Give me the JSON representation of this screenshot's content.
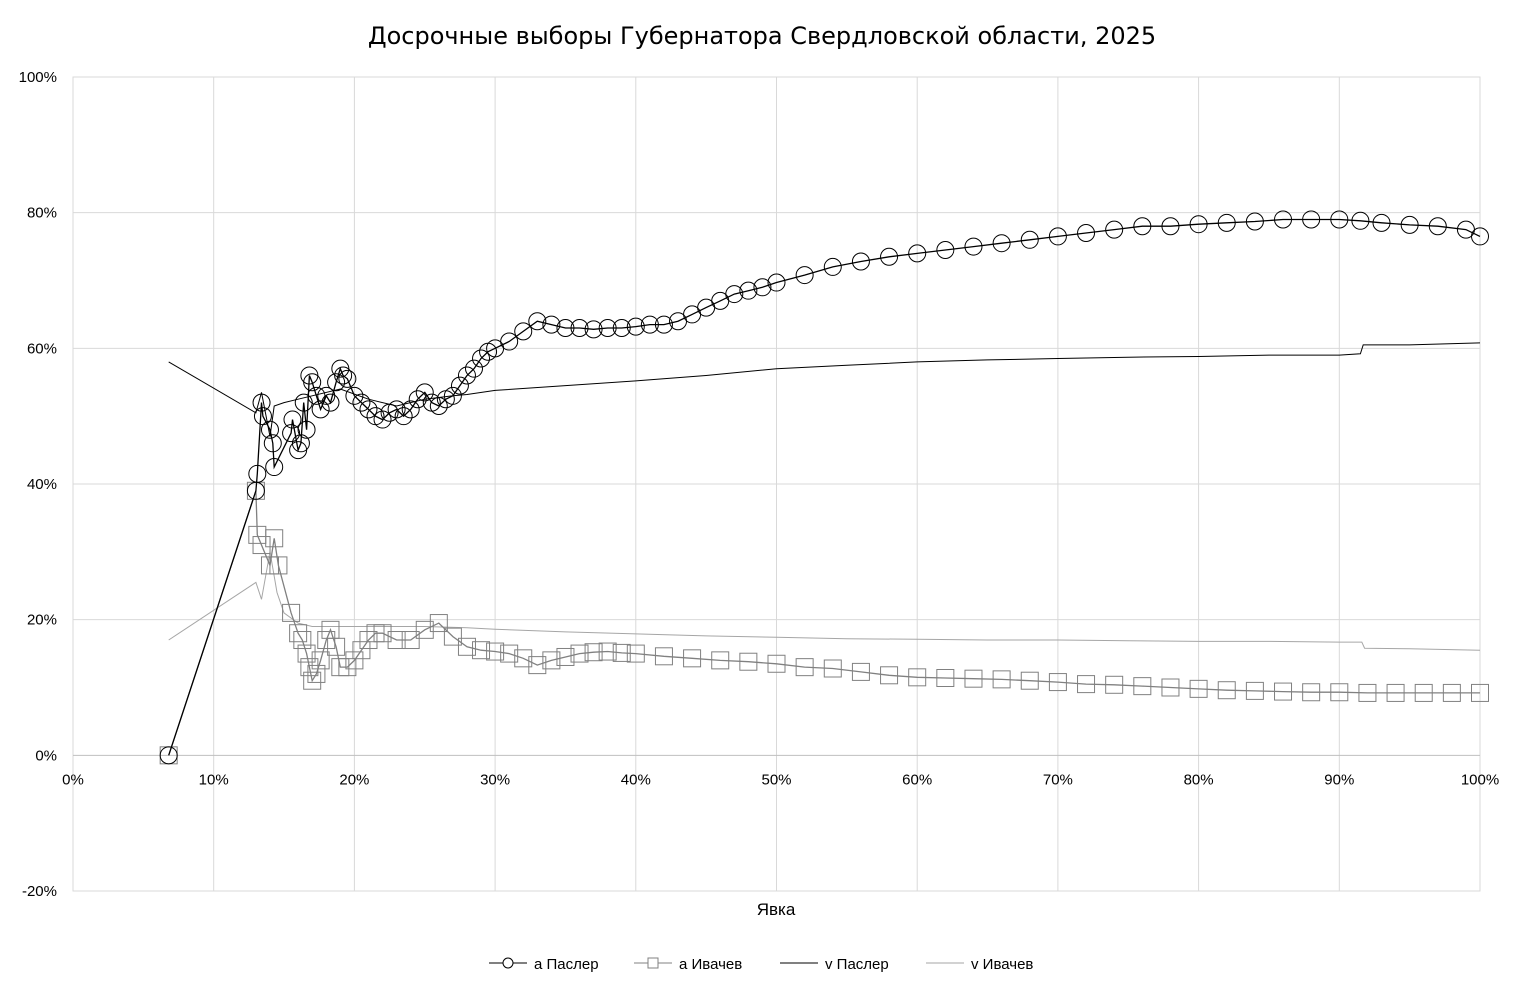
{
  "chart_data": {
    "type": "line",
    "title": "Досрочные выборы Губернатора Свердловской области, 2025",
    "xlabel": "Явка",
    "ylabel": "",
    "xlim": [
      0,
      100
    ],
    "ylim": [
      -20,
      100
    ],
    "x_ticks": [
      "0%",
      "10%",
      "20%",
      "30%",
      "40%",
      "50%",
      "60%",
      "70%",
      "80%",
      "90%",
      "100%"
    ],
    "y_ticks": [
      "-20%",
      "0%",
      "20%",
      "40%",
      "60%",
      "80%",
      "100%"
    ],
    "grid": true,
    "legend_position": "bottom",
    "series": [
      {
        "name": "a Паслер",
        "marker": "circle",
        "color": "#000000",
        "points": [
          [
            6.8,
            0
          ],
          [
            13.0,
            39
          ],
          [
            13.1,
            41.5
          ],
          [
            13.4,
            52
          ],
          [
            13.5,
            50
          ],
          [
            14.0,
            48
          ],
          [
            14.2,
            46
          ],
          [
            14.3,
            42.5
          ],
          [
            15.5,
            47.5
          ],
          [
            15.6,
            49.5
          ],
          [
            16.0,
            45
          ],
          [
            16.2,
            46
          ],
          [
            16.4,
            52
          ],
          [
            16.6,
            48
          ],
          [
            16.8,
            56
          ],
          [
            17.0,
            55
          ],
          [
            17.3,
            53
          ],
          [
            17.6,
            51
          ],
          [
            18.0,
            53
          ],
          [
            18.3,
            52
          ],
          [
            18.7,
            55
          ],
          [
            19.0,
            57
          ],
          [
            19.2,
            56
          ],
          [
            19.5,
            55.5
          ],
          [
            20.0,
            53
          ],
          [
            20.5,
            52
          ],
          [
            21.0,
            51
          ],
          [
            21.5,
            50
          ],
          [
            22.0,
            49.5
          ],
          [
            22.5,
            50.5
          ],
          [
            23.0,
            51
          ],
          [
            23.5,
            50
          ],
          [
            24.0,
            51
          ],
          [
            24.5,
            52.5
          ],
          [
            25.0,
            53.5
          ],
          [
            25.5,
            52
          ],
          [
            26.0,
            51.5
          ],
          [
            26.5,
            52.5
          ],
          [
            27.0,
            53
          ],
          [
            27.5,
            54.5
          ],
          [
            28.0,
            56
          ],
          [
            28.5,
            57
          ],
          [
            29.0,
            58.5
          ],
          [
            29.5,
            59.5
          ],
          [
            30.0,
            60
          ],
          [
            31.0,
            61
          ],
          [
            32.0,
            62.5
          ],
          [
            33.0,
            64
          ],
          [
            34.0,
            63.5
          ],
          [
            35.0,
            63
          ],
          [
            36.0,
            63
          ],
          [
            37.0,
            62.8
          ],
          [
            38.0,
            63
          ],
          [
            39.0,
            63
          ],
          [
            40.0,
            63.2
          ],
          [
            41.0,
            63.5
          ],
          [
            42.0,
            63.5
          ],
          [
            43.0,
            64
          ],
          [
            44.0,
            65
          ],
          [
            45.0,
            66
          ],
          [
            46.0,
            67
          ],
          [
            47.0,
            68
          ],
          [
            48.0,
            68.5
          ],
          [
            49.0,
            69
          ],
          [
            50.0,
            69.7
          ],
          [
            52.0,
            70.8
          ],
          [
            54.0,
            72
          ],
          [
            56.0,
            72.8
          ],
          [
            58.0,
            73.5
          ],
          [
            60.0,
            74
          ],
          [
            62.0,
            74.5
          ],
          [
            64.0,
            75
          ],
          [
            66.0,
            75.5
          ],
          [
            68.0,
            76
          ],
          [
            70.0,
            76.5
          ],
          [
            72.0,
            77
          ],
          [
            74.0,
            77.5
          ],
          [
            76.0,
            78
          ],
          [
            78.0,
            78
          ],
          [
            80.0,
            78.3
          ],
          [
            82.0,
            78.5
          ],
          [
            84.0,
            78.7
          ],
          [
            86.0,
            79
          ],
          [
            88.0,
            79
          ],
          [
            90.0,
            79
          ],
          [
            91.5,
            78.8
          ],
          [
            93.0,
            78.5
          ],
          [
            95.0,
            78.2
          ],
          [
            97.0,
            78
          ],
          [
            99.0,
            77.5
          ],
          [
            100.0,
            76.5
          ]
        ]
      },
      {
        "name": "a Ивачев",
        "marker": "square",
        "color": "#808080",
        "points": [
          [
            6.8,
            0
          ],
          [
            13.0,
            39
          ],
          [
            13.1,
            32.5
          ],
          [
            13.4,
            31
          ],
          [
            14.0,
            28
          ],
          [
            14.3,
            32
          ],
          [
            14.6,
            28
          ],
          [
            15.5,
            21
          ],
          [
            16.0,
            18
          ],
          [
            16.3,
            17
          ],
          [
            16.6,
            15
          ],
          [
            16.8,
            13
          ],
          [
            17.0,
            11
          ],
          [
            17.3,
            12
          ],
          [
            17.6,
            14
          ],
          [
            18.0,
            17
          ],
          [
            18.3,
            18.5
          ],
          [
            18.7,
            16
          ],
          [
            19.0,
            13
          ],
          [
            19.5,
            13
          ],
          [
            20.0,
            14
          ],
          [
            20.5,
            15.5
          ],
          [
            21.0,
            17
          ],
          [
            21.5,
            18
          ],
          [
            22.0,
            18
          ],
          [
            23.0,
            17
          ],
          [
            24.0,
            17
          ],
          [
            25.0,
            18.5
          ],
          [
            26.0,
            19.5
          ],
          [
            27.0,
            17.5
          ],
          [
            28.0,
            16
          ],
          [
            29.0,
            15.5
          ],
          [
            30.0,
            15.3
          ],
          [
            31.0,
            15
          ],
          [
            32.0,
            14.3
          ],
          [
            33.0,
            13.3
          ],
          [
            34.0,
            14
          ],
          [
            35.0,
            14.5
          ],
          [
            36.0,
            15
          ],
          [
            37.0,
            15.2
          ],
          [
            38.0,
            15.3
          ],
          [
            39.0,
            15.1
          ],
          [
            40.0,
            15
          ],
          [
            42.0,
            14.6
          ],
          [
            44.0,
            14.3
          ],
          [
            46.0,
            14
          ],
          [
            48.0,
            13.8
          ],
          [
            50.0,
            13.5
          ],
          [
            52.0,
            13
          ],
          [
            54.0,
            12.8
          ],
          [
            56.0,
            12.3
          ],
          [
            58.0,
            11.8
          ],
          [
            60.0,
            11.5
          ],
          [
            62.0,
            11.4
          ],
          [
            64.0,
            11.3
          ],
          [
            66.0,
            11.2
          ],
          [
            68.0,
            11
          ],
          [
            70.0,
            10.8
          ],
          [
            72.0,
            10.5
          ],
          [
            74.0,
            10.4
          ],
          [
            76.0,
            10.2
          ],
          [
            78.0,
            10
          ],
          [
            80.0,
            9.8
          ],
          [
            82.0,
            9.6
          ],
          [
            84.0,
            9.5
          ],
          [
            86.0,
            9.4
          ],
          [
            88.0,
            9.3
          ],
          [
            90.0,
            9.3
          ],
          [
            92.0,
            9.2
          ],
          [
            94.0,
            9.2
          ],
          [
            96.0,
            9.2
          ],
          [
            98.0,
            9.2
          ],
          [
            100.0,
            9.2
          ]
        ]
      },
      {
        "name": "v Паслер",
        "marker": "none",
        "color": "#000000",
        "points": [
          [
            6.8,
            58
          ],
          [
            13.0,
            50.5
          ],
          [
            13.4,
            53.5
          ],
          [
            14.0,
            47
          ],
          [
            14.3,
            51.5
          ],
          [
            15.0,
            52
          ],
          [
            16.0,
            52.5
          ],
          [
            17.0,
            53
          ],
          [
            19.0,
            54
          ],
          [
            21.0,
            52.5
          ],
          [
            23.0,
            51.5
          ],
          [
            25.0,
            52.5
          ],
          [
            27.0,
            53
          ],
          [
            28.0,
            53.2
          ],
          [
            30.0,
            53.8
          ],
          [
            35.0,
            54.5
          ],
          [
            40.0,
            55.2
          ],
          [
            45.0,
            56
          ],
          [
            50.0,
            57
          ],
          [
            55.0,
            57.5
          ],
          [
            60.0,
            58
          ],
          [
            65.0,
            58.3
          ],
          [
            70.0,
            58.5
          ],
          [
            75.0,
            58.7
          ],
          [
            80.0,
            58.8
          ],
          [
            85.0,
            59
          ],
          [
            90.0,
            59
          ],
          [
            91.5,
            59.2
          ],
          [
            91.7,
            60.5
          ],
          [
            95.0,
            60.5
          ],
          [
            100.0,
            60.8
          ]
        ]
      },
      {
        "name": "v Ивачев",
        "marker": "none",
        "color": "#a6a6a6",
        "points": [
          [
            6.8,
            17
          ],
          [
            13.0,
            25.5
          ],
          [
            13.4,
            23
          ],
          [
            14.0,
            30
          ],
          [
            14.5,
            24
          ],
          [
            15.0,
            21
          ],
          [
            16.0,
            19.5
          ],
          [
            17.0,
            19
          ],
          [
            18.0,
            19
          ],
          [
            20.0,
            19
          ],
          [
            25.0,
            19
          ],
          [
            28.0,
            18.8
          ],
          [
            30.0,
            18.6
          ],
          [
            35.0,
            18.2
          ],
          [
            40.0,
            17.9
          ],
          [
            45.0,
            17.6
          ],
          [
            50.0,
            17.4
          ],
          [
            55.0,
            17.2
          ],
          [
            60.0,
            17.1
          ],
          [
            65.0,
            17
          ],
          [
            70.0,
            17
          ],
          [
            75.0,
            16.9
          ],
          [
            80.0,
            16.8
          ],
          [
            85.0,
            16.8
          ],
          [
            90.0,
            16.7
          ],
          [
            91.6,
            16.7
          ],
          [
            91.8,
            15.8
          ],
          [
            95.0,
            15.7
          ],
          [
            100.0,
            15.5
          ]
        ]
      }
    ]
  }
}
